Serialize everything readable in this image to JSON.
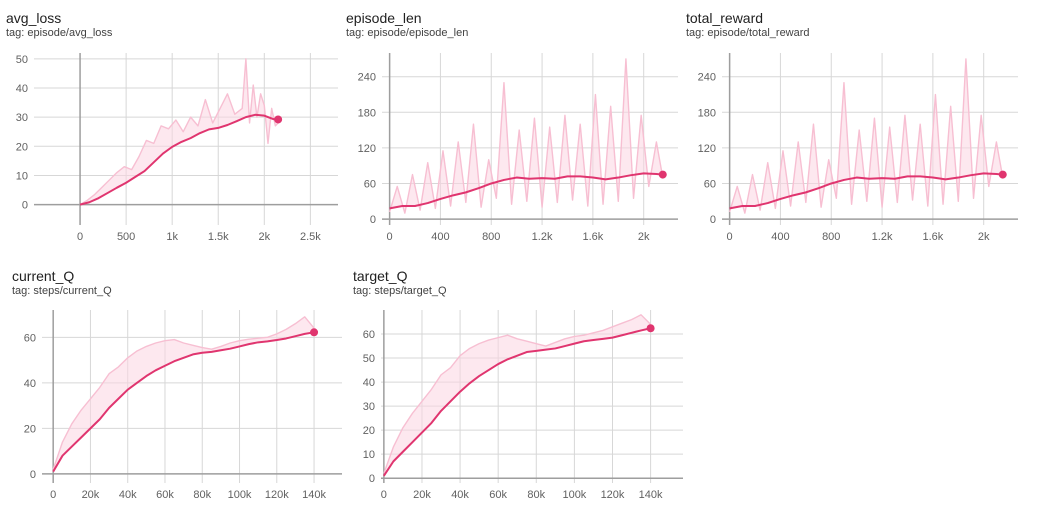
{
  "colors": {
    "smoothed": "#e0356f",
    "raw": "#f7bfd2",
    "band": "#fbd6e2",
    "grid": "#d7d7d7",
    "axis": "#9e9e9e",
    "text": "#616161"
  },
  "chart_data": [
    {
      "type": "line",
      "title": "avg_loss",
      "tag": "tag: episode/avg_loss",
      "xlabel": "",
      "ylabel": "",
      "xlim": [
        -500,
        2800
      ],
      "ylim": [
        -7,
        52
      ],
      "x_ticks": [
        0,
        500,
        1000,
        1500,
        2000,
        2500
      ],
      "x_tick_labels": [
        "0",
        "500",
        "1k",
        "1.5k",
        "2k",
        "2.5k"
      ],
      "y_ticks": [
        0,
        10,
        20,
        30,
        40,
        50
      ],
      "y_tick_labels": [
        "0",
        "10",
        "20",
        "30",
        "40",
        "50"
      ],
      "grid": true,
      "series": [
        {
          "style": "smoothed",
          "x": [
            0,
            100,
            200,
            300,
            400,
            500,
            600,
            700,
            800,
            900,
            1000,
            1100,
            1200,
            1300,
            1400,
            1500,
            1600,
            1700,
            1800,
            1900,
            2000,
            2100,
            2150
          ],
          "y": [
            0,
            0.8,
            2.2,
            4,
            5.8,
            7.5,
            9.5,
            11.5,
            14.5,
            17.5,
            19.8,
            21.5,
            22.8,
            24.5,
            25.8,
            26.3,
            27.3,
            28.6,
            30,
            30.8,
            30.5,
            29.3,
            29.2
          ]
        },
        {
          "style": "raw",
          "x": [
            0,
            80,
            160,
            240,
            320,
            400,
            480,
            560,
            640,
            720,
            800,
            880,
            960,
            1040,
            1120,
            1200,
            1280,
            1360,
            1440,
            1520,
            1600,
            1680,
            1760,
            1800,
            1840,
            1880,
            1920,
            1960,
            2000,
            2040,
            2080,
            2120,
            2150
          ],
          "y": [
            0,
            1.5,
            3.5,
            6,
            8.5,
            11,
            13,
            12,
            16.5,
            22,
            21,
            27,
            26,
            29,
            25,
            30,
            27,
            36,
            28,
            33,
            38,
            31,
            33,
            50,
            28,
            41,
            30,
            38,
            34,
            21,
            33,
            27,
            28
          ]
        }
      ]
    },
    {
      "type": "line",
      "title": "episode_len",
      "tag": "tag: episode/episode_len",
      "xlabel": "",
      "ylabel": "",
      "xlim": [
        -60,
        2270
      ],
      "ylim": [
        -10,
        280
      ],
      "x_ticks": [
        0,
        400,
        800,
        1200,
        1600,
        2000
      ],
      "x_tick_labels": [
        "0",
        "400",
        "800",
        "1.2k",
        "1.6k",
        "2k"
      ],
      "y_ticks": [
        0,
        60,
        120,
        180,
        240
      ],
      "y_tick_labels": [
        "0",
        "60",
        "120",
        "180",
        "240"
      ],
      "grid": true,
      "series": [
        {
          "style": "smoothed",
          "x": [
            0,
            100,
            200,
            300,
            400,
            500,
            600,
            700,
            800,
            900,
            1000,
            1100,
            1200,
            1300,
            1400,
            1500,
            1600,
            1700,
            1800,
            1900,
            2000,
            2100,
            2150
          ],
          "y": [
            18,
            22,
            22,
            27,
            34,
            40,
            45,
            52,
            60,
            66,
            70,
            68,
            69,
            68,
            72,
            72,
            70,
            67,
            70,
            74,
            77,
            76,
            75
          ]
        },
        {
          "style": "raw",
          "x": [
            0,
            60,
            120,
            180,
            240,
            300,
            360,
            420,
            480,
            540,
            600,
            660,
            720,
            780,
            840,
            900,
            960,
            1020,
            1080,
            1140,
            1200,
            1260,
            1320,
            1380,
            1440,
            1500,
            1560,
            1620,
            1680,
            1740,
            1800,
            1860,
            1920,
            1980,
            2040,
            2100,
            2150
          ],
          "y": [
            12,
            55,
            10,
            75,
            15,
            95,
            18,
            115,
            22,
            130,
            28,
            160,
            20,
            100,
            35,
            230,
            25,
            150,
            30,
            170,
            20,
            155,
            28,
            175,
            32,
            160,
            22,
            210,
            25,
            190,
            30,
            270,
            35,
            175,
            55,
            130,
            70
          ]
        }
      ]
    },
    {
      "type": "line",
      "title": "total_reward",
      "tag": "tag: episode/total_reward",
      "xlabel": "",
      "ylabel": "",
      "xlim": [
        -60,
        2270
      ],
      "ylim": [
        -10,
        280
      ],
      "x_ticks": [
        0,
        400,
        800,
        1200,
        1600,
        2000
      ],
      "x_tick_labels": [
        "0",
        "400",
        "800",
        "1.2k",
        "1.6k",
        "2k"
      ],
      "y_ticks": [
        0,
        60,
        120,
        180,
        240
      ],
      "y_tick_labels": [
        "0",
        "60",
        "120",
        "180",
        "240"
      ],
      "grid": true,
      "series": [
        {
          "style": "smoothed",
          "x": [
            0,
            100,
            200,
            300,
            400,
            500,
            600,
            700,
            800,
            900,
            1000,
            1100,
            1200,
            1300,
            1400,
            1500,
            1600,
            1700,
            1800,
            1900,
            2000,
            2100,
            2150
          ],
          "y": [
            18,
            22,
            22,
            27,
            34,
            40,
            45,
            52,
            60,
            66,
            70,
            68,
            69,
            68,
            72,
            72,
            70,
            67,
            70,
            74,
            77,
            76,
            75
          ]
        },
        {
          "style": "raw",
          "x": [
            0,
            60,
            120,
            180,
            240,
            300,
            360,
            420,
            480,
            540,
            600,
            660,
            720,
            780,
            840,
            900,
            960,
            1020,
            1080,
            1140,
            1200,
            1260,
            1320,
            1380,
            1440,
            1500,
            1560,
            1620,
            1680,
            1740,
            1800,
            1860,
            1920,
            1980,
            2040,
            2100,
            2150
          ],
          "y": [
            12,
            55,
            10,
            75,
            15,
            95,
            18,
            115,
            22,
            130,
            28,
            160,
            20,
            100,
            35,
            230,
            25,
            150,
            30,
            170,
            20,
            155,
            28,
            175,
            32,
            160,
            22,
            210,
            25,
            190,
            30,
            270,
            35,
            175,
            55,
            130,
            70
          ]
        }
      ]
    },
    {
      "type": "line",
      "title": "current_Q",
      "tag": "tag: steps/current_Q",
      "xlabel": "",
      "ylabel": "",
      "xlim": [
        -6000,
        155000
      ],
      "ylim": [
        -4,
        72
      ],
      "x_ticks": [
        0,
        20000,
        40000,
        60000,
        80000,
        100000,
        120000,
        140000
      ],
      "x_tick_labels": [
        "0",
        "20k",
        "40k",
        "60k",
        "80k",
        "100k",
        "120k",
        "140k"
      ],
      "y_ticks": [
        0,
        20,
        40,
        60
      ],
      "y_tick_labels": [
        "0",
        "20",
        "40",
        "60"
      ],
      "grid": true,
      "series": [
        {
          "style": "smoothed",
          "x": [
            0,
            5000,
            10000,
            15000,
            20000,
            25000,
            30000,
            35000,
            40000,
            45000,
            50000,
            55000,
            60000,
            65000,
            70000,
            75000,
            80000,
            85000,
            90000,
            95000,
            100000,
            105000,
            110000,
            115000,
            120000,
            125000,
            130000,
            135000,
            140000
          ],
          "y": [
            1,
            8,
            12,
            16,
            20,
            24,
            29,
            33,
            37,
            40,
            43,
            45.5,
            47.5,
            49.5,
            51,
            52.5,
            53.2,
            53.6,
            54.3,
            55,
            56,
            57,
            57.8,
            58.2,
            58.8,
            59.5,
            60.5,
            61.5,
            62.2
          ]
        },
        {
          "style": "raw",
          "x": [
            0,
            5000,
            10000,
            15000,
            20000,
            25000,
            30000,
            35000,
            40000,
            45000,
            50000,
            55000,
            60000,
            65000,
            70000,
            75000,
            80000,
            85000,
            90000,
            95000,
            100000,
            105000,
            110000,
            115000,
            120000,
            125000,
            130000,
            135000,
            140000
          ],
          "y": [
            2,
            14,
            22,
            28,
            33,
            38,
            44,
            47,
            51,
            54,
            56,
            57.5,
            58.5,
            59,
            57.5,
            56.5,
            55.5,
            54.8,
            56,
            57.5,
            58.5,
            59.2,
            59.6,
            60,
            61.5,
            63.5,
            66,
            69,
            64
          ]
        }
      ]
    },
    {
      "type": "line",
      "title": "target_Q",
      "tag": "tag: steps/target_Q",
      "xlabel": "",
      "ylabel": "",
      "xlim": [
        -1500,
        157000
      ],
      "ylim": [
        -2,
        70
      ],
      "x_ticks": [
        0,
        20000,
        40000,
        60000,
        80000,
        100000,
        120000,
        140000
      ],
      "x_tick_labels": [
        "0",
        "20k",
        "40k",
        "60k",
        "80k",
        "100k",
        "120k",
        "140k"
      ],
      "y_ticks": [
        0,
        10,
        20,
        30,
        40,
        50,
        60
      ],
      "y_tick_labels": [
        "0",
        "10",
        "20",
        "30",
        "40",
        "50",
        "60"
      ],
      "grid": true,
      "series": [
        {
          "style": "smoothed",
          "x": [
            0,
            5000,
            10000,
            15000,
            20000,
            25000,
            30000,
            35000,
            40000,
            45000,
            50000,
            55000,
            60000,
            65000,
            70000,
            75000,
            80000,
            85000,
            90000,
            95000,
            100000,
            105000,
            110000,
            115000,
            120000,
            125000,
            130000,
            135000,
            140000
          ],
          "y": [
            1,
            7,
            11,
            15,
            19,
            23,
            28,
            32,
            36,
            39.5,
            42.5,
            45,
            47.5,
            49.5,
            51,
            52.5,
            53,
            53.5,
            54,
            55,
            56,
            57,
            57.5,
            58,
            58.5,
            59.5,
            60.5,
            61.5,
            62.4
          ]
        },
        {
          "style": "raw",
          "x": [
            0,
            5000,
            10000,
            15000,
            20000,
            25000,
            30000,
            35000,
            40000,
            45000,
            50000,
            55000,
            60000,
            65000,
            70000,
            75000,
            80000,
            85000,
            90000,
            95000,
            100000,
            105000,
            110000,
            115000,
            120000,
            125000,
            130000,
            135000,
            140000
          ],
          "y": [
            2,
            13,
            21,
            27,
            32,
            37,
            43,
            46,
            51,
            54,
            56,
            57.5,
            58.5,
            59.5,
            58,
            57,
            56,
            55,
            56.5,
            58,
            59,
            59.5,
            60.5,
            61.5,
            63,
            64.5,
            66,
            68,
            64
          ]
        }
      ]
    }
  ]
}
